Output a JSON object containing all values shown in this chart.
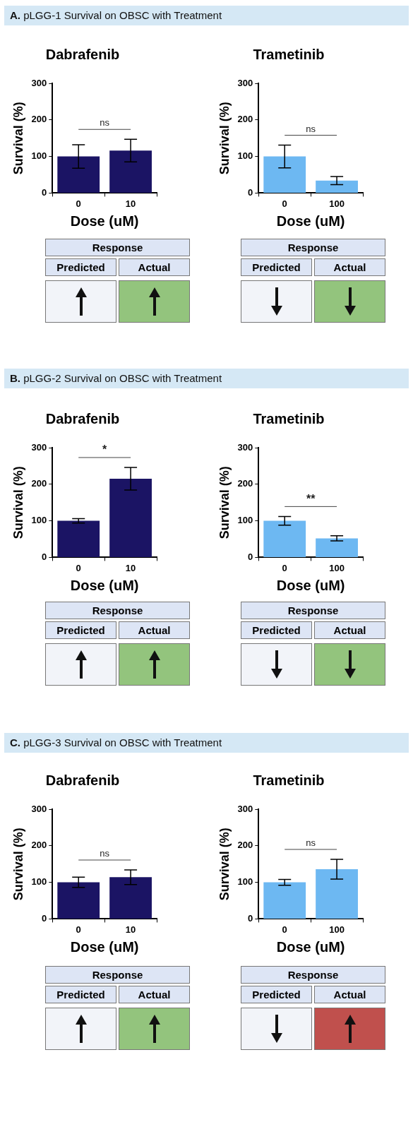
{
  "chart_data": [
    {
      "type": "other",
      "title": "A. pLGG-1 Survival on OBSC with Treatment"
    },
    {
      "type": "bar",
      "title": "Dabrafenib",
      "xlabel": "Dose (uM)",
      "ylabel": "Survival (%)",
      "categories": [
        "0",
        "10"
      ],
      "values": [
        100,
        116
      ],
      "errors": [
        32,
        31
      ],
      "color": "#1b1464",
      "ylim": [
        0,
        300
      ],
      "yticks": [
        0,
        100,
        200,
        300
      ],
      "grid": false,
      "legend": false,
      "annotations": [
        "ns"
      ]
    },
    {
      "type": "bar",
      "title": "Trametinib",
      "xlabel": "Dose (uM)",
      "ylabel": "Survival (%)",
      "categories": [
        "0",
        "100"
      ],
      "values": [
        100,
        34
      ],
      "errors": [
        31,
        11
      ],
      "color": "#6db8f2",
      "ylim": [
        0,
        300
      ],
      "yticks": [
        0,
        100,
        200,
        300
      ],
      "grid": false,
      "legend": false,
      "annotations": [
        "ns"
      ]
    },
    {
      "type": "other",
      "title": "Response",
      "annotations": [
        "Predicted",
        "Actual"
      ]
    },
    {
      "type": "other",
      "title": "Response",
      "annotations": [
        "Predicted",
        "Actual"
      ]
    },
    {
      "type": "other",
      "title": "B. pLGG-2 Survival on OBSC with Treatment"
    },
    {
      "type": "bar",
      "title": "Dabrafenib",
      "xlabel": "Dose (uM)",
      "ylabel": "Survival (%)",
      "categories": [
        "0",
        "10"
      ],
      "values": [
        100,
        215
      ],
      "errors": [
        6,
        31
      ],
      "color": "#1b1464",
      "ylim": [
        0,
        300
      ],
      "yticks": [
        0,
        100,
        200,
        300
      ],
      "grid": false,
      "legend": false,
      "annotations": [
        "*"
      ]
    },
    {
      "type": "bar",
      "title": "Trametinib",
      "xlabel": "Dose (uM)",
      "ylabel": "Survival (%)",
      "categories": [
        "0",
        "100"
      ],
      "values": [
        100,
        52
      ],
      "errors": [
        12,
        7
      ],
      "color": "#6db8f2",
      "ylim": [
        0,
        300
      ],
      "yticks": [
        0,
        100,
        200,
        300
      ],
      "grid": false,
      "legend": false,
      "annotations": [
        "**"
      ]
    },
    {
      "type": "other",
      "title": "Response",
      "annotations": [
        "Predicted",
        "Actual"
      ]
    },
    {
      "type": "other",
      "title": "Response",
      "annotations": [
        "Predicted",
        "Actual"
      ]
    },
    {
      "type": "other",
      "title": "C. pLGG-3 Survival on OBSC with Treatment"
    },
    {
      "type": "bar",
      "title": "Dabrafenib",
      "xlabel": "Dose (uM)",
      "ylabel": "Survival (%)",
      "categories": [
        "0",
        "10"
      ],
      "values": [
        100,
        114
      ],
      "errors": [
        14,
        20
      ],
      "color": "#1b1464",
      "ylim": [
        0,
        300
      ],
      "yticks": [
        0,
        100,
        200,
        300
      ],
      "grid": false,
      "legend": false,
      "annotations": [
        "ns"
      ]
    },
    {
      "type": "bar",
      "title": "Trametinib",
      "xlabel": "Dose (uM)",
      "ylabel": "Survival (%)",
      "categories": [
        "0",
        "100"
      ],
      "values": [
        100,
        136
      ],
      "errors": [
        8,
        27
      ],
      "color": "#6db8f2",
      "ylim": [
        0,
        300
      ],
      "yticks": [
        0,
        100,
        200,
        300
      ],
      "grid": false,
      "legend": false,
      "annotations": [
        "ns"
      ]
    },
    {
      "type": "other",
      "title": "Response",
      "annotations": [
        "Predicted",
        "Actual"
      ]
    },
    {
      "type": "other",
      "title": "Response",
      "annotations": [
        "Predicted",
        "Actual"
      ]
    }
  ]
}
